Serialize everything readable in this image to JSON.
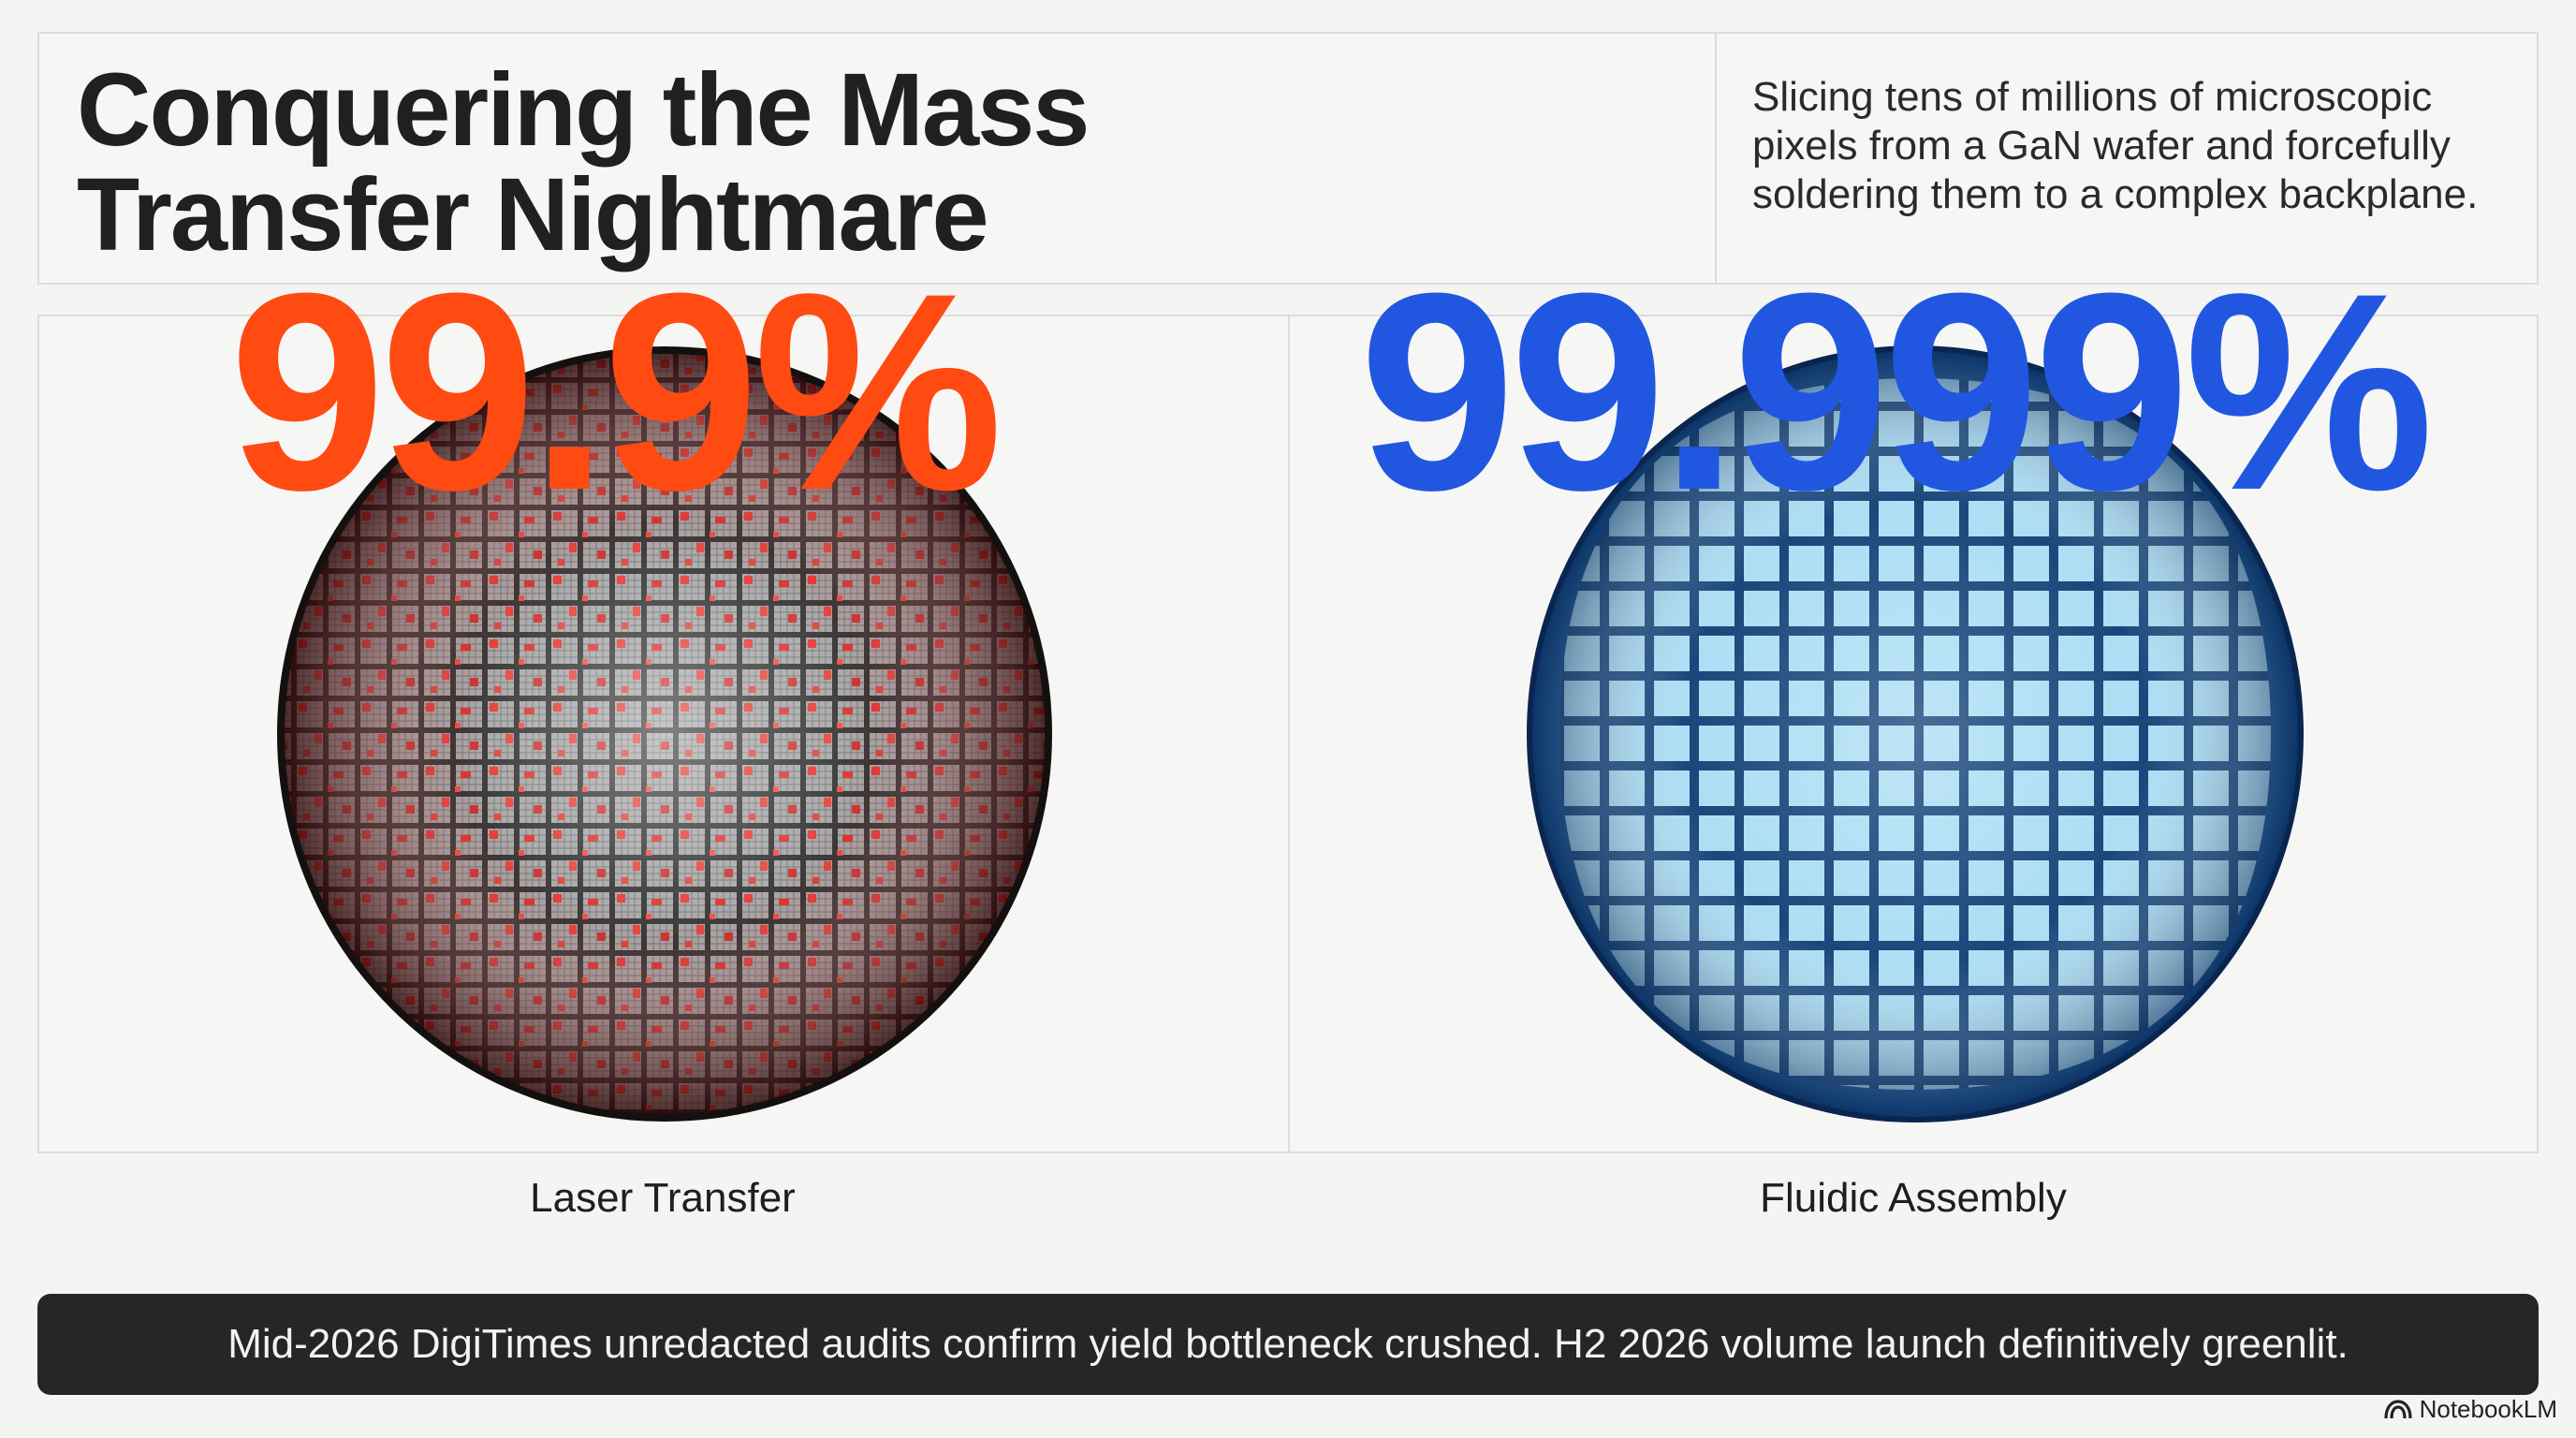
{
  "header": {
    "title_line1": "Conquering the Mass",
    "title_line2": "Transfer Nightmare",
    "subtitle": "Slicing tens of millions of microscopic pixels from a GaN wafer and forcefully soldering them to a complex backplane."
  },
  "comparison": [
    {
      "value": "99.9%",
      "label": "Laser Transfer",
      "color": "#ff4a12"
    },
    {
      "value": "99.999%",
      "label": "Fluidic Assembly",
      "color": "#2157e0"
    }
  ],
  "banner": {
    "text": "Mid-2026 DigiTimes unredacted audits confirm yield bottleneck crushed. H2 2026 volume launch definitively greenlit."
  },
  "branding": {
    "name": "NotebookLM",
    "icon": "notebooklm-logo-icon"
  }
}
